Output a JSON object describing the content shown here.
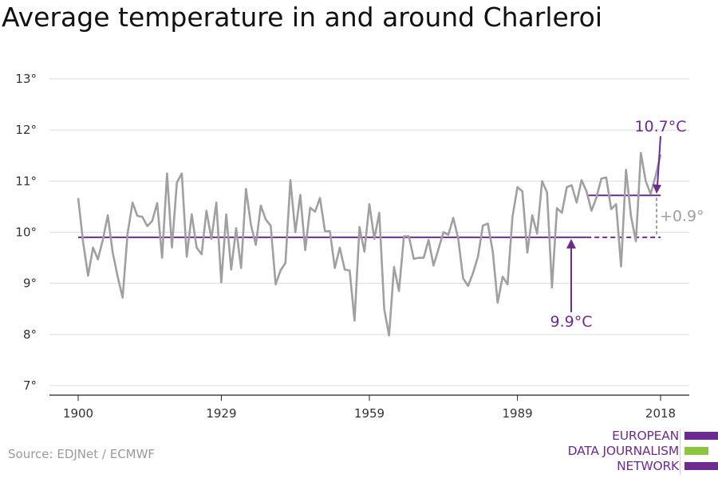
{
  "header": {
    "title": "Average temperature in and around Charleroi"
  },
  "footer": {
    "source": "Source: EDJNet / ECMWF"
  },
  "logo": {
    "lines": [
      "EUROPEAN",
      "DATA JOURNALISM",
      "NETWORK"
    ]
  },
  "colors": {
    "series": "#a0a0a0",
    "accent": "#6d2b8f",
    "grid": "#dcdcdc",
    "logo_green": "#8cc63f"
  },
  "chart_data": {
    "type": "line",
    "title": "Average temperature in and around Charleroi",
    "xlabel": "",
    "ylabel": "",
    "xlim": [
      1900,
      2018
    ],
    "ylim": [
      7,
      13
    ],
    "x_ticks": [
      1900,
      1929,
      1959,
      1989,
      2018
    ],
    "y_ticks": [
      7,
      8,
      9,
      10,
      11,
      12,
      13
    ],
    "y_tick_suffix": "°",
    "grid": "horizontal",
    "series": [
      {
        "x": [
          1900,
          1901,
          1902,
          1903,
          1904,
          1905,
          1906,
          1907,
          1908,
          1909,
          1910,
          1911,
          1912,
          1913,
          1914,
          1915,
          1916,
          1917,
          1918,
          1919,
          1920,
          1921,
          1922,
          1923,
          1924,
          1925,
          1926,
          1927,
          1928,
          1929,
          1930,
          1931,
          1932,
          1933,
          1934,
          1935,
          1936,
          1937,
          1938,
          1939,
          1940,
          1941,
          1942,
          1943,
          1944,
          1945,
          1946,
          1947,
          1948,
          1949,
          1950,
          1951,
          1952,
          1953,
          1954,
          1955,
          1956,
          1957,
          1958,
          1959,
          1960,
          1961,
          1962,
          1963,
          1964,
          1965,
          1966,
          1967,
          1968,
          1969,
          1970,
          1971,
          1972,
          1973,
          1974,
          1975,
          1976,
          1977,
          1978,
          1979,
          1980,
          1981,
          1982,
          1983,
          1984,
          1985,
          1986,
          1987,
          1988,
          1989,
          1990,
          1991,
          1992,
          1993,
          1994,
          1995,
          1996,
          1997,
          1998,
          1999,
          2000,
          2001,
          2002,
          2003,
          2004,
          2005,
          2006,
          2007,
          2008,
          2009,
          2010,
          2011,
          2012,
          2013,
          2014,
          2015,
          2016,
          2017,
          2018
        ],
        "values": [
          10.67,
          9.8,
          9.15,
          9.7,
          9.47,
          9.85,
          10.33,
          9.6,
          9.13,
          8.72,
          9.97,
          10.58,
          10.32,
          10.3,
          10.12,
          10.22,
          10.57,
          9.5,
          11.15,
          9.7,
          10.97,
          11.15,
          9.52,
          10.35,
          9.7,
          9.57,
          10.42,
          9.87,
          10.58,
          9.02,
          10.35,
          9.27,
          10.08,
          9.3,
          10.85,
          10.15,
          9.75,
          10.52,
          10.25,
          10.13,
          8.98,
          9.25,
          9.4,
          11.02,
          10.0,
          10.73,
          9.65,
          10.48,
          10.4,
          10.67,
          10.02,
          10.02,
          9.3,
          9.7,
          9.27,
          9.25,
          8.27,
          10.1,
          9.62,
          10.55,
          9.87,
          10.38,
          8.5,
          7.98,
          9.32,
          8.85,
          9.92,
          9.92,
          9.48,
          9.5,
          9.5,
          9.85,
          9.35,
          9.67,
          10.0,
          9.95,
          10.28,
          9.87,
          9.1,
          8.95,
          9.2,
          9.52,
          10.13,
          10.17,
          9.62,
          8.62,
          9.13,
          8.98,
          10.3,
          10.88,
          10.8,
          9.6,
          10.33,
          9.97,
          11.0,
          10.78,
          8.92,
          10.47,
          10.38,
          10.88,
          10.92,
          10.58,
          11.02,
          10.8,
          10.42,
          10.68,
          11.05,
          11.07,
          10.45,
          10.55,
          9.33,
          11.22,
          10.32,
          9.82,
          11.55,
          11.0,
          10.75,
          11.1,
          11.52
        ]
      }
    ],
    "annotations": {
      "baseline": {
        "label": "9.9°C",
        "value": 9.9,
        "x_start": 1900,
        "x_end": 2018,
        "solid_until": 2003
      },
      "recent": {
        "label": "10.7°C",
        "value": 10.72,
        "x_start": 2003,
        "x_end": 2018
      },
      "difference": {
        "label": "+0.9°"
      }
    }
  }
}
